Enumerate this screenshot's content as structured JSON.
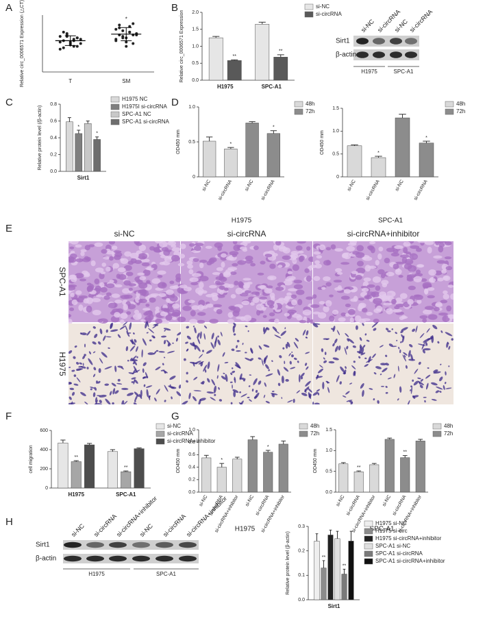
{
  "panel_labels": [
    "A",
    "B",
    "C",
    "D",
    "E",
    "F",
    "G",
    "H"
  ],
  "blot_B": {
    "lanes": [
      "si-NC",
      "si-circRNA",
      "si-NC",
      "si-circRNA"
    ],
    "proteins": [
      "Sirt1",
      "β-actin"
    ],
    "groups": [
      "H1975",
      "SPC-A1"
    ]
  },
  "micrographs": {
    "columns": [
      "si-NC",
      "si-circRNA",
      "si-circRNA+inhibitor"
    ],
    "rows": [
      "SPC-A1",
      "H1975"
    ]
  },
  "blot_H": {
    "lanes": [
      "si-NC",
      "si-circRNA",
      "si-circRNA+inhibitor",
      "si-NC",
      "si-circRNA",
      "si-circRNA+inhibitor"
    ],
    "proteins": [
      "Sirt1",
      "β-actin"
    ],
    "groups": [
      "H1975",
      "SPC-A1"
    ]
  },
  "chart_data": [
    {
      "type": "scatter",
      "ylabel": "Relative circ_0006571 Expression (△CT)",
      "categories": [
        "T",
        "SM"
      ],
      "color": "#222222",
      "values": [
        [
          12.5,
          11,
          13,
          10,
          9,
          12,
          11.5,
          10.5,
          8.5,
          13.5,
          9.5,
          11,
          12,
          10,
          8,
          14,
          12.5,
          10.5,
          11.5,
          9
        ],
        [
          15,
          13,
          14.5,
          12,
          16,
          10,
          13.5,
          11,
          15.5,
          12.5,
          9,
          14,
          17,
          13,
          11.5,
          16.5,
          12,
          10.5,
          14,
          13
        ]
      ],
      "means": [
        11,
        13.3
      ],
      "sd": [
        1.7,
        2.3
      ],
      "significance": [
        null,
        "*"
      ],
      "ylim": [
        0,
        20
      ]
    },
    {
      "type": "bar",
      "ylabel": "Relative circ_0006571 Expression",
      "categories": [
        "H1975",
        "SPC-A1"
      ],
      "series": [
        {
          "name": "si-NC",
          "color": "#e6e6e6",
          "values": [
            1.25,
            1.65
          ],
          "errors": [
            0.04,
            0.06
          ]
        },
        {
          "name": "si-circRNA",
          "color": "#595959",
          "values": [
            0.58,
            0.68
          ],
          "errors": [
            0.02,
            0.07
          ],
          "significance": [
            "**",
            "**"
          ]
        }
      ],
      "ylim": [
        0,
        2
      ],
      "yticks": [
        {
          "value": 0,
          "label": "0.0"
        },
        0.5,
        {
          "value": 1,
          "label": "1.0"
        },
        1.5,
        {
          "value": 2,
          "label": "2.0"
        }
      ]
    },
    {
      "type": "bar",
      "ylabel": "Relative protein level (/β-actin)",
      "categories": [
        "Sirt1"
      ],
      "series": [
        {
          "name": "H1975 NC",
          "color": "#d9d9d9",
          "values": [
            0.59
          ],
          "errors": [
            0.05
          ]
        },
        {
          "name": "H1975I si-circRNA",
          "color": "#7f7f7f",
          "values": [
            0.45
          ],
          "errors": [
            0.04
          ],
          "significance": [
            "*"
          ]
        },
        {
          "name": "SPC-A1 NC",
          "color": "#c8c8c8",
          "values": [
            0.57
          ],
          "errors": [
            0.03
          ]
        },
        {
          "name": "SPC-A1 si-circRNA",
          "color": "#6e6e6e",
          "values": [
            0.38
          ],
          "errors": [
            0.03
          ],
          "significance": [
            "*"
          ]
        }
      ],
      "ylim": [
        0,
        0.8
      ],
      "yticks": [
        {
          "value": 0,
          "label": "0.0"
        },
        0.2,
        0.4,
        0.6,
        0.8
      ]
    },
    {
      "type": "bar",
      "ylabel": "OD450 mm",
      "xlabel": "H1975",
      "categories": [
        "si-NC",
        "si-circRNA",
        "si-NC",
        "si-circRNA"
      ],
      "series": [
        {
          "name": "48h",
          "color": "#d9d9d9",
          "values": [
            0.51,
            0.4,
            null,
            null
          ],
          "errors": [
            0.06,
            0.02,
            null,
            null
          ],
          "significance": [
            null,
            "*",
            null,
            null
          ]
        },
        {
          "name": "72h",
          "color": "#8c8c8c",
          "values": [
            null,
            null,
            0.77,
            0.62
          ],
          "errors": [
            null,
            null,
            0.02,
            0.04
          ],
          "significance": [
            null,
            null,
            null,
            "*"
          ]
        }
      ],
      "ylim": [
        0,
        1
      ],
      "yticks": [
        0,
        0.5,
        {
          "value": 1,
          "label": "1.0"
        }
      ]
    },
    {
      "type": "bar",
      "ylabel": "OD450 mm",
      "xlabel": "SPC-A1",
      "categories": [
        "si-NC",
        "si-circRNA",
        "si-NC",
        "si-circRNA"
      ],
      "series": [
        {
          "name": "48h",
          "color": "#d9d9d9",
          "values": [
            0.68,
            0.42,
            null,
            null
          ],
          "errors": [
            0.02,
            0.03,
            null,
            null
          ],
          "significance": [
            null,
            "*",
            null,
            null
          ]
        },
        {
          "name": "72h",
          "color": "#8c8c8c",
          "values": [
            null,
            null,
            1.29,
            0.74
          ],
          "errors": [
            null,
            null,
            0.08,
            0.04
          ],
          "significance": [
            null,
            null,
            null,
            "*"
          ]
        }
      ],
      "ylim": [
        0,
        1.5
      ],
      "yticks": [
        0,
        0.5,
        {
          "value": 1,
          "label": "1.0"
        },
        1.5
      ]
    },
    {
      "type": "bar",
      "ylabel": "cell migration",
      "categories": [
        "H1975",
        "SPC-A1"
      ],
      "series": [
        {
          "name": "si-NC",
          "color": "#e6e6e6",
          "values": [
            470,
            380
          ],
          "errors": [
            30,
            20
          ]
        },
        {
          "name": "si-circRNA",
          "color": "#a6a6a6",
          "values": [
            275,
            170
          ],
          "errors": [
            10,
            8
          ],
          "significance": [
            "**",
            "**"
          ]
        },
        {
          "name": "si-circRNA+inhibitor",
          "color": "#4d4d4d",
          "values": [
            450,
            410
          ],
          "errors": [
            15,
            8
          ]
        }
      ],
      "ylim": [
        0,
        600
      ],
      "yticks": [
        0,
        200,
        400,
        600
      ]
    },
    {
      "type": "bar",
      "ylabel": "OD450 mm",
      "xlabel": "H1975",
      "categories": [
        "si-NC",
        "si-circRNA",
        "si-circRNA+inhibitor",
        "si-NC",
        "si-circRNA",
        "si-circRNA+inhibitor"
      ],
      "series": [
        {
          "name": "48h",
          "color": "#d9d9d9",
          "values": [
            0.55,
            0.4,
            0.53,
            null,
            null,
            null
          ],
          "errors": [
            0.04,
            0.06,
            0.03,
            null,
            null,
            null
          ],
          "significance": [
            null,
            "*",
            null,
            null,
            null,
            null
          ]
        },
        {
          "name": "72h",
          "color": "#8c8c8c",
          "values": [
            null,
            null,
            null,
            0.84,
            0.64,
            0.77
          ],
          "errors": [
            null,
            null,
            null,
            0.05,
            0.03,
            0.05
          ],
          "significance": [
            null,
            null,
            null,
            null,
            "*",
            null
          ]
        }
      ],
      "ylim": [
        0,
        1
      ],
      "yticks": [
        {
          "value": 0,
          "label": "0.0"
        },
        0.2,
        0.4,
        0.6,
        0.8,
        {
          "value": 1,
          "label": "1.0"
        }
      ]
    },
    {
      "type": "bar",
      "ylabel": "OD450 mm",
      "xlabel": "SPC-A1",
      "categories": [
        "si-NC",
        "si-circRNA",
        "si-circRNA+inhibitor",
        "si-NC",
        "si-circRNA",
        "si-circRNA+inhibitor"
      ],
      "series": [
        {
          "name": "48h",
          "color": "#d9d9d9",
          "values": [
            0.68,
            0.49,
            0.66,
            null,
            null,
            null
          ],
          "errors": [
            0.03,
            0.02,
            0.03,
            null,
            null,
            null
          ],
          "significance": [
            null,
            "**",
            null,
            null,
            null,
            null
          ]
        },
        {
          "name": "72h",
          "color": "#8c8c8c",
          "values": [
            null,
            null,
            null,
            1.27,
            0.83,
            1.23
          ],
          "errors": [
            null,
            null,
            null,
            0.03,
            0.05,
            0.04
          ],
          "significance": [
            null,
            null,
            null,
            null,
            "**",
            null
          ]
        }
      ],
      "ylim": [
        0,
        1.5
      ],
      "yticks": [
        {
          "value": 0,
          "label": "0.0"
        },
        0.5,
        {
          "value": 1,
          "label": "1.0"
        },
        1.5
      ]
    },
    {
      "type": "bar",
      "ylabel": "Relative protein level (β-actin)",
      "categories": [
        "Sirt1"
      ],
      "series": [
        {
          "name": "H1975 si-NC",
          "color": "#eeeeee",
          "values": [
            0.24
          ],
          "errors": [
            0.03
          ]
        },
        {
          "name": "H1975 si-circ",
          "color": "#8c8c8c",
          "values": [
            0.13
          ],
          "errors": [
            0.03
          ],
          "significance": [
            "**"
          ]
        },
        {
          "name": "H1975 si-circRNA+inhibitor",
          "color": "#222222",
          "values": [
            0.265
          ],
          "errors": [
            0.02
          ]
        },
        {
          "name": "SPC-A1 si-NC",
          "color": "#e0e0e0",
          "values": [
            0.25
          ],
          "errors": [
            0.03
          ]
        },
        {
          "name": "SPC-A1 si-circRNA",
          "color": "#7a7a7a",
          "values": [
            0.105
          ],
          "errors": [
            0.02
          ],
          "significance": [
            "**"
          ]
        },
        {
          "name": "SPC-A1 si-circRNA+inhibitor",
          "color": "#111111",
          "values": [
            0.24
          ],
          "errors": [
            0.04
          ]
        }
      ],
      "ylim": [
        0,
        0.3
      ],
      "yticks": [
        {
          "value": 0,
          "label": "0.0"
        },
        0.1,
        0.2,
        0.3
      ]
    }
  ]
}
